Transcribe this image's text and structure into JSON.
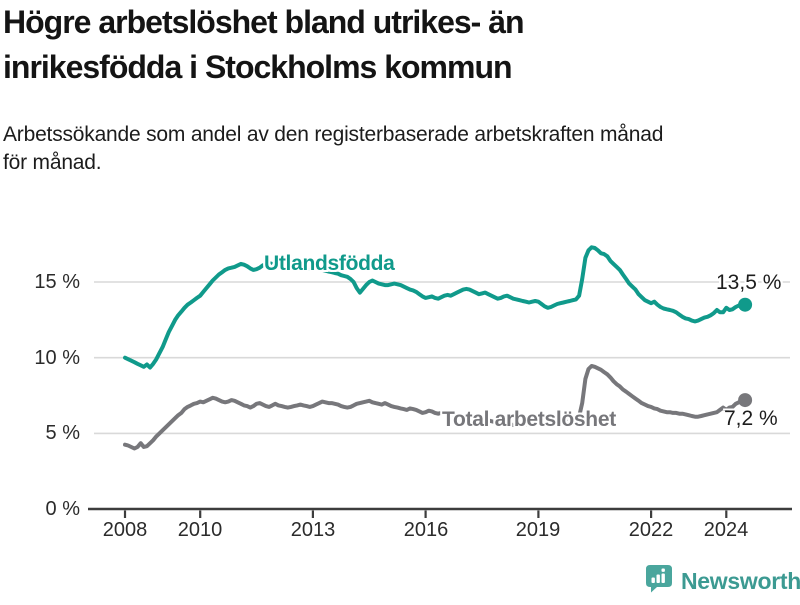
{
  "header": {
    "title_lines": [
      "Högre arbetslöshet bland utrikes- än",
      "inrikesfödda i Stockholms kommun"
    ],
    "subtitle_lines": [
      "Arbetssökande som andel av den registerbaserade arbetskraften månad",
      "för månad."
    ]
  },
  "footer": {
    "brand": "Newsworthy"
  },
  "chart_data": {
    "type": "line",
    "title": "Högre arbetslöshet bland utrikes- än inrikesfödda i Stockholms kommun",
    "subtitle": "Arbetssökande som andel av den registerbaserade arbetskraften månad för månad.",
    "x_unit": "month",
    "x_start_year": 2008,
    "x_end": "2024-07",
    "x_ticks": [
      2008,
      2010,
      2013,
      2016,
      2019,
      2022,
      2024
    ],
    "y_ticks": [
      0,
      5,
      10,
      15
    ],
    "y_tick_labels": [
      "0 %",
      "5 %",
      "10 %",
      "15 %"
    ],
    "ylim": [
      0,
      18.5
    ],
    "grid": "horizontal",
    "legend_position": "inline-labels",
    "series": [
      {
        "name": "Utlandsfödda",
        "color": "#109a8b",
        "end_label": "13,5 %",
        "end_value": 13.5,
        "values": [
          10.0,
          9.9,
          9.8,
          9.7,
          9.6,
          9.5,
          9.4,
          9.55,
          9.35,
          9.6,
          9.9,
          10.3,
          10.7,
          11.2,
          11.7,
          12.1,
          12.5,
          12.8,
          13.05,
          13.3,
          13.5,
          13.65,
          13.8,
          13.95,
          14.1,
          14.35,
          14.6,
          14.85,
          15.1,
          15.3,
          15.5,
          15.65,
          15.8,
          15.9,
          15.95,
          16.0,
          16.1,
          16.2,
          16.15,
          16.05,
          15.9,
          15.8,
          15.85,
          15.95,
          16.1,
          16.2,
          16.25,
          16.2,
          16.15,
          16.1,
          16.15,
          16.1,
          16.0,
          15.95,
          16.0,
          16.05,
          16.0,
          15.95,
          15.9,
          15.9,
          15.95,
          15.9,
          15.85,
          15.8,
          15.75,
          15.7,
          15.65,
          15.6,
          15.55,
          15.45,
          15.4,
          15.35,
          15.2,
          15.0,
          14.6,
          14.3,
          14.55,
          14.8,
          15.0,
          15.1,
          15.0,
          14.9,
          14.85,
          14.8,
          14.8,
          14.85,
          14.9,
          14.85,
          14.8,
          14.7,
          14.6,
          14.5,
          14.45,
          14.35,
          14.2,
          14.05,
          13.95,
          14.0,
          14.05,
          13.95,
          13.9,
          14.0,
          14.1,
          14.15,
          14.1,
          14.2,
          14.3,
          14.4,
          14.5,
          14.55,
          14.5,
          14.4,
          14.3,
          14.2,
          14.25,
          14.3,
          14.2,
          14.1,
          14.0,
          13.9,
          13.95,
          14.05,
          14.1,
          14.0,
          13.9,
          13.85,
          13.8,
          13.75,
          13.7,
          13.65,
          13.7,
          13.75,
          13.7,
          13.55,
          13.4,
          13.3,
          13.35,
          13.45,
          13.55,
          13.6,
          13.65,
          13.7,
          13.75,
          13.8,
          13.85,
          14.1,
          15.2,
          16.6,
          17.1,
          17.3,
          17.25,
          17.1,
          16.9,
          16.85,
          16.7,
          16.4,
          16.2,
          16.0,
          15.8,
          15.5,
          15.2,
          14.9,
          14.7,
          14.5,
          14.2,
          14.0,
          13.8,
          13.7,
          13.6,
          13.7,
          13.5,
          13.35,
          13.25,
          13.2,
          13.15,
          13.1,
          13.0,
          12.85,
          12.7,
          12.6,
          12.55,
          12.45,
          12.4,
          12.45,
          12.55,
          12.65,
          12.7,
          12.8,
          12.95,
          13.15,
          13.0,
          13.0,
          13.3,
          13.15,
          13.2,
          13.35,
          13.45,
          13.4,
          13.5
        ]
      },
      {
        "name": "Total arbetslöshet",
        "color": "#77777b",
        "end_label": "7,2 %",
        "end_value": 7.2,
        "values": [
          4.25,
          4.2,
          4.1,
          4.0,
          4.1,
          4.35,
          4.1,
          4.15,
          4.35,
          4.55,
          4.8,
          5.0,
          5.2,
          5.4,
          5.6,
          5.8,
          6.0,
          6.2,
          6.35,
          6.6,
          6.75,
          6.85,
          6.95,
          7.0,
          7.1,
          7.05,
          7.15,
          7.25,
          7.35,
          7.3,
          7.2,
          7.1,
          7.05,
          7.1,
          7.2,
          7.15,
          7.05,
          6.95,
          6.85,
          6.8,
          6.7,
          6.8,
          6.95,
          7.0,
          6.9,
          6.8,
          6.75,
          6.85,
          6.95,
          6.85,
          6.8,
          6.75,
          6.7,
          6.75,
          6.8,
          6.85,
          6.9,
          6.85,
          6.8,
          6.75,
          6.8,
          6.9,
          7.0,
          7.1,
          7.05,
          7.0,
          7.0,
          6.95,
          6.9,
          6.8,
          6.75,
          6.7,
          6.75,
          6.85,
          6.95,
          7.0,
          7.05,
          7.1,
          7.15,
          7.05,
          7.0,
          6.95,
          6.9,
          7.0,
          6.9,
          6.8,
          6.75,
          6.7,
          6.65,
          6.6,
          6.55,
          6.65,
          6.6,
          6.55,
          6.45,
          6.35,
          6.4,
          6.5,
          6.45,
          6.35,
          6.3,
          6.35,
          6.3,
          6.25,
          6.2,
          6.15,
          6.1,
          6.05,
          6.0,
          5.95,
          5.9,
          5.9,
          5.85,
          5.8,
          5.85,
          5.9,
          5.85,
          5.8,
          5.75,
          5.7,
          5.7,
          5.65,
          5.6,
          5.6,
          5.55,
          5.6,
          5.65,
          5.6,
          5.55,
          5.6,
          5.65,
          5.7,
          5.65,
          5.6,
          5.55,
          5.6,
          5.65,
          5.7,
          5.75,
          5.75,
          5.8,
          5.85,
          5.9,
          5.95,
          6.0,
          6.1,
          7.0,
          8.6,
          9.25,
          9.45,
          9.4,
          9.3,
          9.2,
          9.05,
          8.9,
          8.7,
          8.45,
          8.25,
          8.1,
          7.9,
          7.75,
          7.6,
          7.45,
          7.3,
          7.15,
          7.0,
          6.9,
          6.8,
          6.75,
          6.65,
          6.6,
          6.5,
          6.45,
          6.4,
          6.4,
          6.35,
          6.35,
          6.3,
          6.3,
          6.25,
          6.2,
          6.15,
          6.1,
          6.1,
          6.15,
          6.2,
          6.25,
          6.3,
          6.35,
          6.4,
          6.55,
          6.7,
          6.55,
          6.7,
          6.75,
          6.95,
          7.05,
          7.1,
          7.2
        ]
      }
    ],
    "colors": {
      "accent_teal": "#109a8b",
      "gray": "#77777b",
      "grid": "#d9d9d9",
      "axis": "#3d3d3d"
    }
  }
}
